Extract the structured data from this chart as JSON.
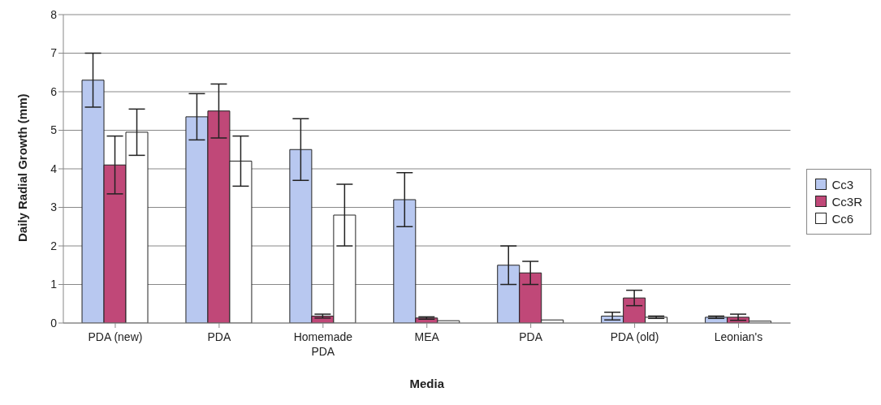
{
  "chart_data": {
    "type": "bar",
    "xlabel": "Media",
    "ylabel": "Daily Radial Growth (mm)",
    "categories": [
      "PDA (new)",
      "PDA",
      "Homemade PDA",
      "MEA",
      "PDA",
      "PDA (old)",
      "Leonian's"
    ],
    "series": [
      {
        "name": "Cc3",
        "color": "#b8c8f0",
        "values": [
          6.3,
          5.35,
          4.5,
          3.2,
          1.5,
          0.18,
          0.15
        ],
        "errors": [
          0.7,
          0.6,
          0.8,
          0.7,
          0.5,
          0.1,
          0.03
        ]
      },
      {
        "name": "Cc3R",
        "color": "#c04878",
        "values": [
          4.1,
          5.5,
          0.18,
          0.13,
          1.3,
          0.65,
          0.15
        ],
        "errors": [
          0.75,
          0.7,
          0.05,
          0.03,
          0.3,
          0.2,
          0.08
        ]
      },
      {
        "name": "Cc6",
        "color": "#ffffff",
        "values": [
          4.95,
          4.2,
          2.8,
          0.06,
          0.08,
          0.15,
          0.05
        ],
        "errors": [
          0.6,
          0.65,
          0.8,
          null,
          null,
          0.03,
          null
        ]
      }
    ],
    "ylim": [
      0,
      8
    ],
    "yticks": [
      0,
      1,
      2,
      3,
      4,
      5,
      6,
      7,
      8
    ],
    "grid": "y",
    "legend": "right"
  }
}
